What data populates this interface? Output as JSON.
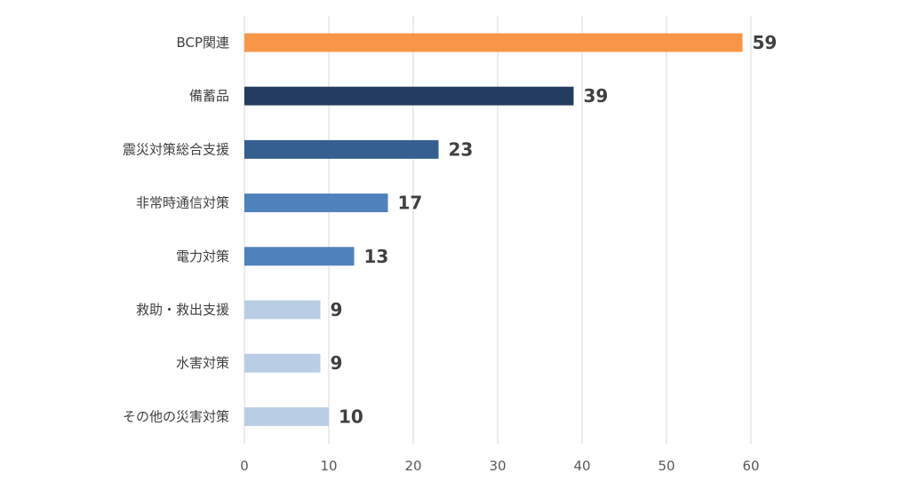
{
  "chart_data": {
    "type": "bar",
    "orientation": "horizontal",
    "title": "",
    "xlabel": "",
    "ylabel": "",
    "xlim": [
      0,
      60
    ],
    "x_ticks": [
      0,
      10,
      20,
      30,
      40,
      50,
      60
    ],
    "grid": true,
    "categories": [
      "BCP関連",
      "備蓄品",
      "震災対策総合支援",
      "非常時通信対策",
      "電力対策",
      "救助・救出支援",
      "水害対策",
      "その他の災害対策"
    ],
    "values": [
      59,
      39,
      23,
      17,
      13,
      9,
      9,
      10
    ],
    "data_labels": [
      "59",
      "39",
      "23",
      "17",
      "13",
      "9",
      "9",
      "10"
    ],
    "bar_colors": [
      "#f79646",
      "#243c5f",
      "#365f91",
      "#4f81bd",
      "#4f81bd",
      "#b9cde5",
      "#b9cde5",
      "#b9cde5"
    ]
  }
}
